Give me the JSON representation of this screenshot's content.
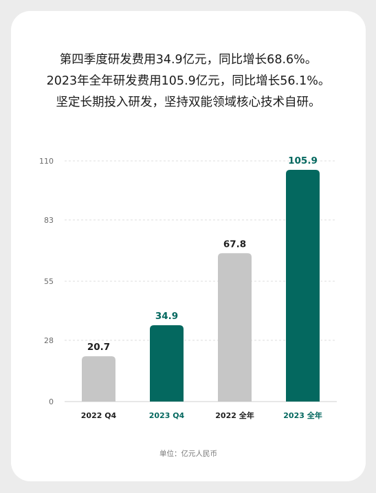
{
  "headline": [
    "第四季度研发费用34.9亿元，同比增长68.6%。",
    "2023年全年研发费用105.9亿元，同比增长56.1%。",
    "坚定长期投入研发，坚持双能领域核心技术自研。"
  ],
  "unit_note": "单位：亿元人民币",
  "colors": {
    "highlight": "#04685f",
    "muted": "#c6c6c6",
    "label_dark": "#1f1f1f",
    "axis_text": "#555555",
    "grid": "#dddddd"
  },
  "chart_data": {
    "type": "bar",
    "categories": [
      "2022 Q4",
      "2023 Q4",
      "2022 全年",
      "2023 全年"
    ],
    "values": [
      20.7,
      34.9,
      67.8,
      105.9
    ],
    "highlighted": [
      false,
      true,
      false,
      true
    ],
    "yticks": [
      0,
      28,
      55,
      83,
      110
    ],
    "ylim": [
      0,
      110
    ],
    "grid": true,
    "xlabel": "",
    "ylabel": ""
  }
}
